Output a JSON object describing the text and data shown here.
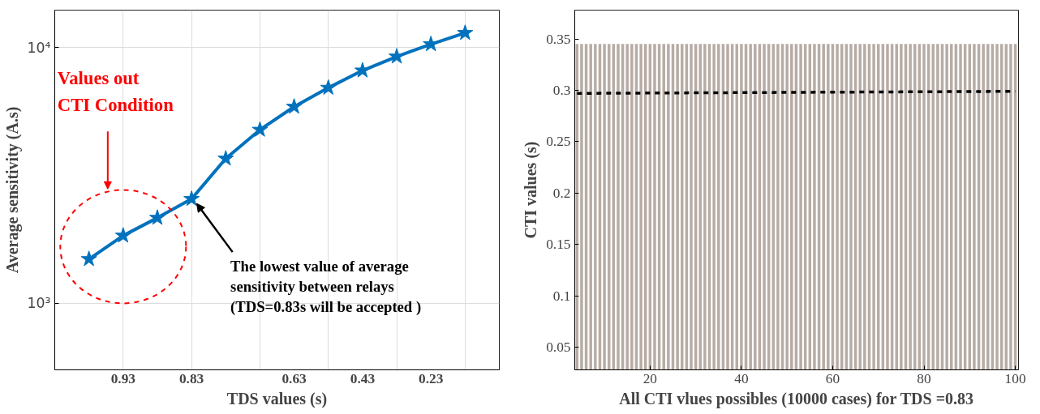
{
  "chart_data": [
    {
      "type": "line",
      "xlabel": "TDS values (s)",
      "ylabel": "Average sensitivity (A.s)",
      "categories": [
        null,
        "0.93",
        null,
        "0.83",
        null,
        null,
        "0.63",
        null,
        "0.43",
        null,
        "0.23",
        null
      ],
      "series": [
        {
          "color": "#0072bd",
          "values": [
            1490,
            1840,
            2160,
            2560,
            3680,
            4770,
            5870,
            6960,
            8130,
            9220,
            10300,
            11400
          ]
        }
      ],
      "marker": "star",
      "line_style": "solid",
      "log": "y",
      "grid": true,
      "ylim": [
        550,
        14000
      ],
      "yticks": [
        {
          "value": 1000,
          "label": "10³"
        },
        {
          "value": 10000,
          "label": "10⁴"
        }
      ],
      "annotations": [
        "Values out\nCTI Condition",
        {
          "text": "The lowest value of average\nsensitivity between relays\n(TDS=0.83s  will be accepted )",
          "x": "0.83",
          "y": 2560
        }
      ]
    },
    {
      "type": "bar",
      "xlabel": "All CTI vlues possibles (10000 cases) for TDS =0.83",
      "ylabel": "CTI values (s)",
      "x": [
        4,
        5,
        6,
        7,
        8,
        9,
        10,
        11,
        12,
        13,
        14,
        15,
        16,
        17,
        18,
        19,
        20,
        21,
        22,
        23,
        24,
        25,
        26,
        27,
        28,
        29,
        30,
        31,
        32,
        33,
        34,
        35,
        36,
        37,
        38,
        39,
        40,
        41,
        42,
        43,
        44,
        45,
        46,
        47,
        48,
        49,
        50,
        51,
        52,
        53,
        54,
        55,
        56,
        57,
        58,
        59,
        60,
        61,
        62,
        63,
        64,
        65,
        66,
        67,
        68,
        69,
        70,
        71,
        72,
        73,
        74,
        75,
        76,
        77,
        78,
        79,
        80,
        81,
        82,
        83,
        84,
        85,
        86,
        87,
        88,
        89,
        90,
        91,
        92,
        93,
        94,
        95,
        96,
        97,
        98,
        99,
        100
      ],
      "series": [
        {
          "color": "#b7aca5",
          "values": [
            0.345,
            0.345,
            0.345,
            0.345,
            0.345,
            0.345,
            0.345,
            0.345,
            0.345,
            0.345,
            0.345,
            0.345,
            0.345,
            0.345,
            0.345,
            0.345,
            0.345,
            0.345,
            0.345,
            0.345,
            0.345,
            0.345,
            0.345,
            0.345,
            0.345,
            0.345,
            0.345,
            0.345,
            0.345,
            0.345,
            0.345,
            0.345,
            0.345,
            0.345,
            0.345,
            0.345,
            0.345,
            0.345,
            0.345,
            0.345,
            0.345,
            0.345,
            0.345,
            0.345,
            0.345,
            0.345,
            0.345,
            0.345,
            0.345,
            0.345,
            0.345,
            0.345,
            0.345,
            0.345,
            0.345,
            0.345,
            0.345,
            0.345,
            0.345,
            0.345,
            0.345,
            0.345,
            0.345,
            0.345,
            0.345,
            0.345,
            0.345,
            0.345,
            0.345,
            0.345,
            0.345,
            0.345,
            0.345,
            0.345,
            0.345,
            0.345,
            0.345,
            0.345,
            0.345,
            0.345,
            0.345,
            0.345,
            0.345,
            0.345,
            0.345,
            0.345,
            0.345,
            0.345,
            0.345,
            0.345,
            0.345,
            0.345,
            0.345,
            0.345,
            0.345,
            0.345,
            0.345
          ]
        },
        {
          "type": "line",
          "color": "#000000",
          "line_style": "dashed",
          "x": [
            4,
            100
          ],
          "values": [
            0.297,
            0.299
          ]
        }
      ],
      "grid": false,
      "xlim": [
        3.5,
        100.7
      ],
      "xticks": [
        20,
        40,
        60,
        80,
        100
      ],
      "ylim": [
        0.028,
        0.378
      ],
      "yticks": [
        0.05,
        0.1,
        0.15,
        0.2,
        0.25,
        0.3,
        0.35
      ]
    }
  ]
}
